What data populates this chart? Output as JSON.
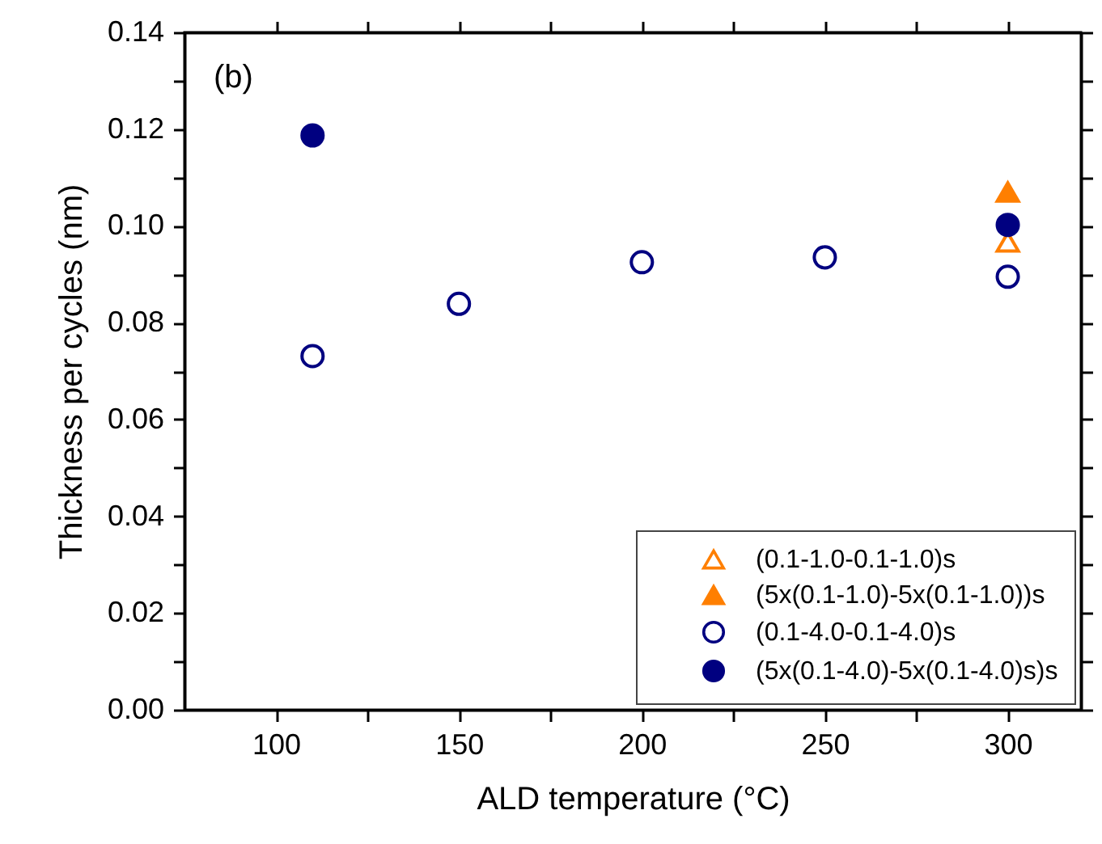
{
  "chart_data": {
    "type": "scatter",
    "xlabel": "ALD temperature (°C)",
    "ylabel": "Thickness per cycles (nm)",
    "annotations": [
      "(b)"
    ],
    "xlim": [
      75,
      320
    ],
    "xticks": [
      100,
      {
        "value": 125,
        "label": null
      },
      150,
      {
        "value": 175,
        "label": null
      },
      200,
      {
        "value": 225,
        "label": null
      },
      250,
      {
        "value": 275,
        "label": null
      },
      300
    ],
    "ylim": [
      0,
      0.14
    ],
    "yticks": [
      {
        "value": 0,
        "label": "0.00"
      },
      {
        "value": 0.01,
        "label": null
      },
      0.02,
      {
        "value": 0.03,
        "label": null
      },
      0.04,
      {
        "value": 0.05,
        "label": null
      },
      0.06,
      {
        "value": 0.07,
        "label": null
      },
      0.08,
      {
        "value": 0.09,
        "label": null
      },
      {
        "value": 0.1,
        "label": "0.10"
      },
      {
        "value": 0.11,
        "label": null
      },
      0.12,
      {
        "value": 0.13,
        "label": null
      },
      0.14
    ],
    "grid": false,
    "legend": "bottom right",
    "series": [
      {
        "name": "(0.1-1.0-0.1-1.0)s",
        "color": "#ff7f00",
        "marker": "triangle-open",
        "x": [
          300
        ],
        "values": [
          0.0967
        ]
      },
      {
        "name": "(5x(0.1-1.0)-5x(0.1-1.0))s",
        "color": "#ff7f00",
        "marker": "triangle",
        "x": [
          300
        ],
        "values": [
          0.107
        ]
      },
      {
        "name": "(0.1-4.0-0.1-4.0)s",
        "color": "#000080",
        "marker": "circle-open",
        "x": [
          110,
          150,
          200,
          250,
          300
        ],
        "values": [
          0.0731,
          0.0839,
          0.0925,
          0.0935,
          0.0895
        ]
      },
      {
        "name": "(5x(0.1-4.0)-5x(0.1-4.0)s)s",
        "color": "#000080",
        "marker": "circle",
        "x": [
          110,
          300
        ],
        "values": [
          0.1187,
          0.1002
        ]
      }
    ]
  }
}
